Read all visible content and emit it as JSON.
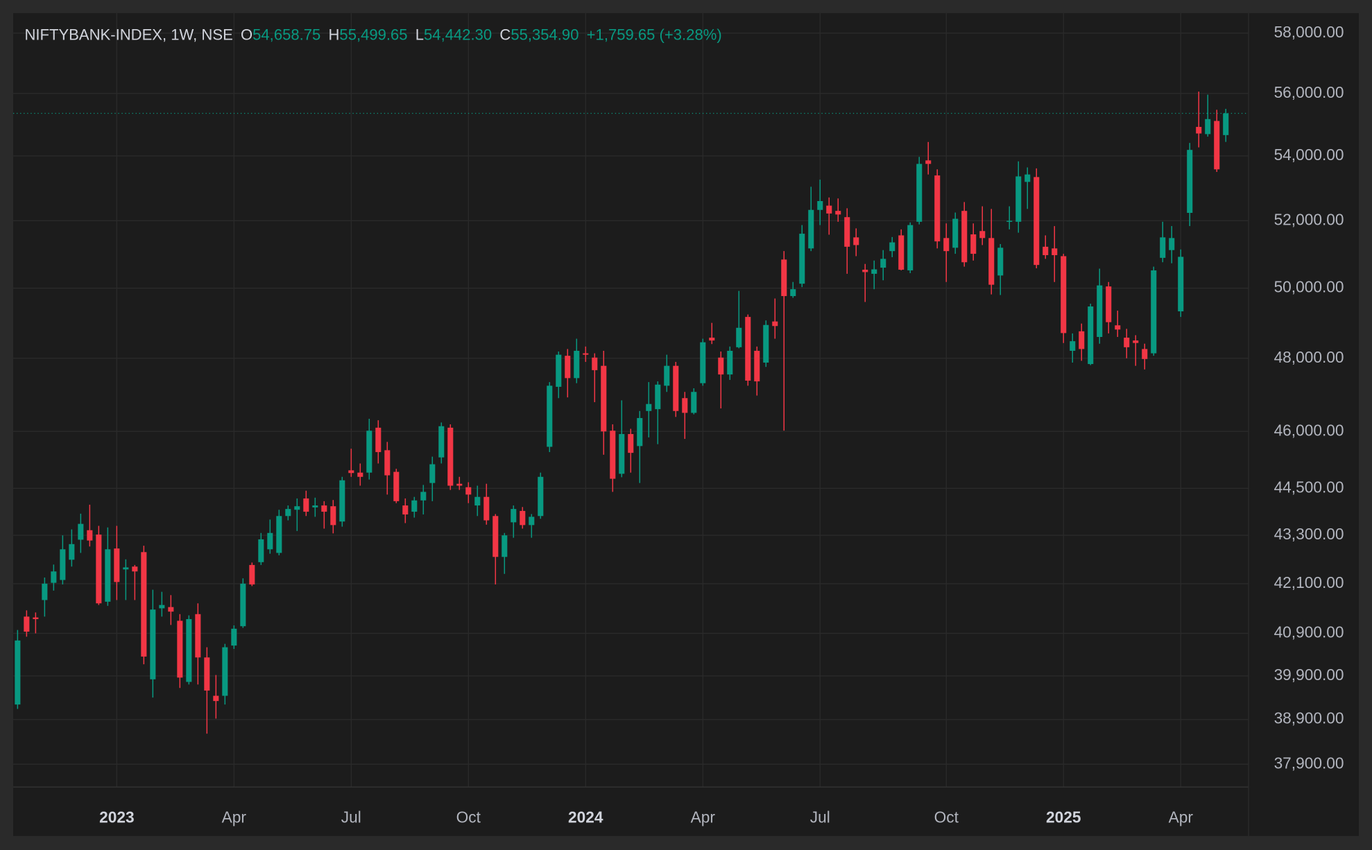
{
  "chart_data": {
    "type": "candlestick",
    "header": {
      "symbol": "NIFTYBANK-INDEX, 1W, NSE",
      "open_label": "O",
      "open": "54,658.75",
      "high_label": "H",
      "high": "55,499.65",
      "low_label": "L",
      "low": "54,442.30",
      "close_label": "C",
      "close": "55,354.90",
      "change": "+1,759.65 (+3.28%)"
    },
    "categories": [
      null,
      null,
      null,
      null,
      null,
      null,
      null,
      null,
      null,
      null,
      null,
      "2023",
      null,
      null,
      null,
      null,
      null,
      null,
      null,
      null,
      null,
      null,
      null,
      null,
      "Apr",
      null,
      null,
      null,
      null,
      null,
      null,
      null,
      null,
      null,
      null,
      null,
      null,
      "Jul",
      null,
      null,
      null,
      null,
      null,
      null,
      null,
      null,
      null,
      null,
      null,
      null,
      "Oct",
      null,
      null,
      null,
      null,
      null,
      null,
      null,
      null,
      null,
      null,
      null,
      null,
      "2024",
      null,
      null,
      null,
      null,
      null,
      null,
      null,
      null,
      null,
      null,
      null,
      null,
      "Apr",
      null,
      null,
      null,
      null,
      null,
      null,
      null,
      null,
      null,
      null,
      null,
      null,
      "Jul",
      null,
      null,
      null,
      null,
      null,
      null,
      null,
      null,
      null,
      null,
      null,
      null,
      null,
      "Oct",
      null,
      null,
      null,
      null,
      null,
      null,
      null,
      null,
      null,
      null,
      null,
      null,
      "2025",
      null,
      null,
      null,
      null,
      null,
      null,
      null,
      null,
      null,
      null,
      null,
      null,
      "Apr",
      null,
      null,
      null,
      null,
      null
    ],
    "up_color": "#089981",
    "down_color": "#f23645",
    "open": [
      39240,
      41300,
      41280,
      41700,
      42120,
      42190,
      42690,
      43190,
      43430,
      43320,
      41660,
      42970,
      42450,
      42520,
      42880,
      39820,
      41500,
      41530,
      41200,
      39760,
      41360,
      40330,
      39440,
      39440,
      40610,
      41070,
      42560,
      42630,
      42950,
      42860,
      43790,
      43950,
      44240,
      44010,
      44060,
      44040,
      43650,
      44970,
      44910,
      44910,
      46100,
      45500,
      44930,
      44060,
      43900,
      44190,
      44640,
      45310,
      46100,
      44620,
      44530,
      44060,
      44280,
      43790,
      42760,
      43630,
      43920,
      43560,
      43790,
      45590,
      47210,
      48070,
      47450,
      48140,
      48020,
      47790,
      46020,
      44880,
      45930,
      45610,
      46550,
      46600,
      47240,
      47790,
      46900,
      46500,
      47310,
      48580,
      48020,
      47550,
      48310,
      49170,
      48210,
      47880,
      49040,
      50840,
      49770,
      50130,
      51170,
      52330,
      52460,
      52300,
      52110,
      51500,
      50540,
      50420,
      50600,
      51090,
      51560,
      50520,
      51970,
      53860,
      53390,
      51480,
      51190,
      52300,
      51590,
      51690,
      51480,
      50370,
      51970,
      51970,
      53190,
      53340,
      51220,
      51170,
      50940,
      48210,
      48760,
      47840,
      48600,
      50050,
      48930,
      48580,
      48500,
      48260,
      48140,
      50890,
      51120,
      49330,
      52240,
      54920,
      54690,
      55110,
      54658.75
    ],
    "high": [
      40980,
      41450,
      41400,
      42250,
      42570,
      43300,
      43450,
      43850,
      44080,
      43540,
      43500,
      43540,
      42700,
      42560,
      43040,
      41950,
      41900,
      41820,
      41360,
      41330,
      41620,
      40570,
      39920,
      40650,
      41090,
      42230,
      42620,
      43360,
      43700,
      43950,
      44060,
      44240,
      44440,
      44260,
      44170,
      44200,
      44800,
      45540,
      45150,
      46340,
      46300,
      45720,
      45010,
      44240,
      44280,
      44590,
      45330,
      46240,
      46190,
      44800,
      44660,
      44570,
      44620,
      43840,
      43360,
      44060,
      44020,
      43840,
      44910,
      47340,
      48190,
      48260,
      48550,
      48330,
      48140,
      48210,
      46190,
      46840,
      46070,
      46550,
      47340,
      47360,
      48100,
      47900,
      47070,
      47170,
      48550,
      49000,
      48190,
      48330,
      49920,
      49240,
      48330,
      49070,
      49700,
      51090,
      50180,
      51870,
      53040,
      53260,
      52710,
      52680,
      52380,
      51770,
      50710,
      50810,
      51120,
      51510,
      51740,
      51950,
      53970,
      54440,
      53580,
      51920,
      52250,
      52570,
      51920,
      52440,
      52360,
      51300,
      52440,
      53830,
      53640,
      53610,
      51560,
      51840,
      51010,
      48700,
      48980,
      49550,
      50570,
      50180,
      49350,
      48830,
      48650,
      48410,
      50630,
      51970,
      51840,
      51140,
      54410,
      56060,
      55960,
      55470,
      55499.65
    ],
    "low": [
      39140,
      40820,
      40900,
      41300,
      41930,
      42080,
      42520,
      42860,
      43020,
      41580,
      41560,
      41700,
      41700,
      41700,
      40170,
      39400,
      41300,
      41100,
      39620,
      39700,
      39700,
      38580,
      38920,
      39240,
      40530,
      41030,
      42040,
      42560,
      42840,
      42800,
      43680,
      43410,
      43790,
      43770,
      43470,
      43350,
      43520,
      44800,
      44570,
      44730,
      45150,
      44340,
      44120,
      43610,
      43750,
      43830,
      44170,
      45150,
      44460,
      44460,
      44120,
      43790,
      43570,
      42080,
      42340,
      43240,
      43470,
      43240,
      43720,
      45450,
      46900,
      46920,
      47310,
      47900,
      46790,
      45380,
      44410,
      44790,
      44910,
      44640,
      45840,
      45660,
      47070,
      46390,
      45800,
      46460,
      47240,
      48400,
      46620,
      47400,
      48280,
      47240,
      46970,
      47760,
      48550,
      46020,
      49720,
      50030,
      51090,
      51870,
      51580,
      51970,
      50420,
      50940,
      49600,
      49970,
      50230,
      50910,
      50520,
      50440,
      51890,
      53420,
      51170,
      50180,
      51010,
      50630,
      50810,
      51270,
      49820,
      49800,
      51740,
      51640,
      52360,
      50580,
      50860,
      50180,
      48430,
      47880,
      47930,
      47810,
      48410,
      48700,
      48600,
      48000,
      47790,
      47690,
      48070,
      50760,
      50730,
      49170,
      51840,
      54270,
      54610,
      53500,
      54442.3
    ],
    "close": [
      40730,
      40940,
      41240,
      42100,
      42400,
      42950,
      43080,
      43590,
      43170,
      41620,
      42950,
      42140,
      42500,
      42400,
      40350,
      41470,
      41580,
      41420,
      39860,
      41240,
      40330,
      39560,
      39320,
      40570,
      41010,
      42100,
      42080,
      43200,
      43360,
      43790,
      43970,
      44040,
      43900,
      44060,
      43900,
      43560,
      44710,
      44900,
      44800,
      46020,
      45450,
      44840,
      44170,
      43830,
      44190,
      44410,
      45130,
      46140,
      44570,
      44570,
      44340,
      44280,
      43680,
      42760,
      43300,
      43970,
      43560,
      43770,
      44800,
      47240,
      48100,
      47450,
      48210,
      48100,
      47670,
      46000,
      44750,
      45930,
      45430,
      46360,
      46740,
      47270,
      47790,
      46550,
      46500,
      47070,
      48450,
      48500,
      47550,
      48210,
      48860,
      47380,
      47360,
      48940,
      48910,
      49770,
      49970,
      51610,
      52330,
      52600,
      52220,
      52190,
      51220,
      51270,
      50470,
      50550,
      50860,
      51350,
      50540,
      51870,
      53750,
      53750,
      51380,
      51090,
      52060,
      50760,
      51010,
      51480,
      50100,
      51190,
      52000,
      53360,
      53420,
      50680,
      50970,
      50970,
      48710,
      48480,
      48260,
      49470,
      50080,
      49020,
      48810,
      48310,
      48430,
      47980,
      50520,
      51500,
      51480,
      50920,
      54190,
      54710,
      55170,
      53580,
      55354.9
    ],
    "ylim": [
      37400,
      58680
    ],
    "log_scale": true,
    "grid": true,
    "last_price_line": true,
    "yticks": [
      {
        "value": 58000,
        "label": "58,000.00"
      },
      {
        "value": 56000,
        "label": "56,000.00"
      },
      {
        "value": 54000,
        "label": "54,000.00"
      },
      {
        "value": 52000,
        "label": "52,000.00"
      },
      {
        "value": 50000,
        "label": "50,000.00"
      },
      {
        "value": 48000,
        "label": "48,000.00"
      },
      {
        "value": 46000,
        "label": "46,000.00"
      },
      {
        "value": 44500,
        "label": "44,500.00"
      },
      {
        "value": 43300,
        "label": "43,300.00"
      },
      {
        "value": 42100,
        "label": "42,100.00"
      },
      {
        "value": 40900,
        "label": "40,900.00"
      },
      {
        "value": 39900,
        "label": "39,900.00"
      },
      {
        "value": 38900,
        "label": "38,900.00"
      },
      {
        "value": 37900,
        "label": "37,900.00"
      }
    ]
  }
}
